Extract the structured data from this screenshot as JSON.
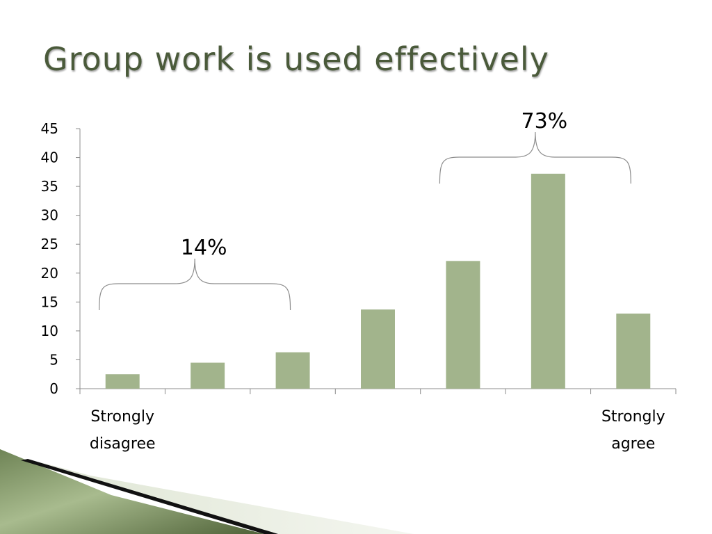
{
  "slide": {
    "title": "Group work is used effectively"
  },
  "colors": {
    "bar": "#a2b48c",
    "title": "#4a5a3a",
    "axis": "#8c8c8c",
    "brace": "#8c8c8c"
  },
  "chart_data": {
    "type": "bar",
    "title": "Group work is used effectively",
    "categories": [
      "1",
      "2",
      "3",
      "4",
      "5",
      "6",
      "7"
    ],
    "values": [
      2.5,
      4.5,
      6.3,
      13.7,
      22.1,
      37.2,
      13
    ],
    "ylim": [
      0,
      45
    ],
    "yticks": [
      0,
      5,
      10,
      15,
      20,
      25,
      30,
      35,
      40,
      45
    ],
    "grid": false,
    "xlabel": "",
    "ylabel": "",
    "x_end_labels": {
      "left": [
        "Strongly",
        "disagree"
      ],
      "right": [
        "Strongly",
        "agree"
      ]
    },
    "annotations": [
      {
        "text": "14%",
        "from_category": 0,
        "to_category": 2
      },
      {
        "text": "73%",
        "from_category": 4,
        "to_category": 6
      }
    ]
  }
}
